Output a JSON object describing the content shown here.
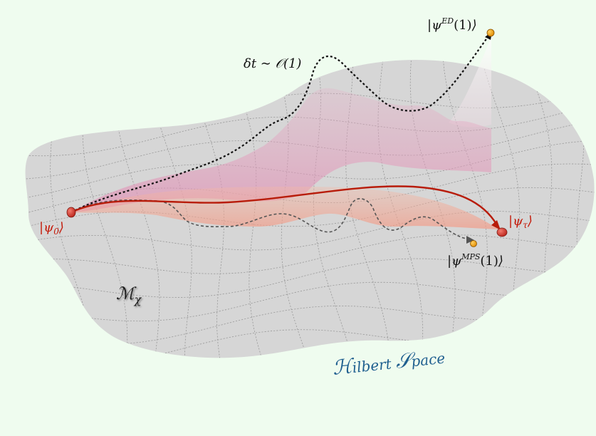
{
  "labels": {
    "psi_0": "|ψ₀⟩",
    "psi_tau": "|ψτ⟩",
    "psi_ed": "|ψED(1)⟩",
    "psi_mps": "|ψMPS(1)⟩",
    "delta_t": "δt ∼ 𝒪(1)",
    "manifold": "ℳχ",
    "space": "ℋilbert 𝒮pace"
  },
  "label_parts": {
    "psi_0": {
      "open": "|",
      "main": "ψ",
      "sub": "0",
      "close": "⟩"
    },
    "psi_tau": {
      "open": "|",
      "main": "ψ",
      "sub": "τ",
      "close": "⟩"
    },
    "psi_ed": {
      "open": "|",
      "main": "ψ",
      "sup": "ED",
      "arg": "(1)",
      "close": "⟩"
    },
    "psi_mps": {
      "open": "|",
      "main": "ψ",
      "sup": "MPS",
      "arg": "(1)",
      "close": "⟩"
    },
    "delta_t": {
      "lhs": "δt ∼ ",
      "rhs": "𝒪(1)"
    },
    "manifold": {
      "main": "ℳ",
      "sub": "χ"
    },
    "space": {
      "first": "ℋ",
      "rest": "ilbert ",
      "second": "𝒮",
      "end": "pace"
    }
  },
  "colors": {
    "background": "#effcef",
    "surface_fill": "#d6d6d6",
    "grid_line": "#9a9a9a",
    "exact_path": "#111111",
    "mps_path": "#555555",
    "projected_path": "#b81c0a",
    "shade_pink": "#e8a9c4",
    "shade_salmon": "#f4b8a4",
    "point_red": "#d9413a",
    "point_orange": "#f5a41a",
    "label_red": "#c41a0a",
    "label_blue": "#1f5f8f"
  }
}
